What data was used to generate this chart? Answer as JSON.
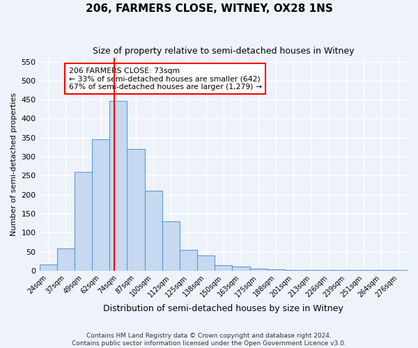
{
  "title": "206, FARMERS CLOSE, WITNEY, OX28 1NS",
  "subtitle": "Size of property relative to semi-detached houses in Witney",
  "xlabel": "Distribution of semi-detached houses by size in Witney",
  "ylabel": "Number of semi-detached properties",
  "categories": [
    "24sqm",
    "37sqm",
    "49sqm",
    "62sqm",
    "74sqm",
    "87sqm",
    "100sqm",
    "112sqm",
    "125sqm",
    "138sqm",
    "150sqm",
    "163sqm",
    "175sqm",
    "188sqm",
    "201sqm",
    "213sqm",
    "226sqm",
    "239sqm",
    "251sqm",
    "264sqm",
    "276sqm"
  ],
  "bar_heights": [
    17,
    58,
    260,
    345,
    447,
    320,
    210,
    130,
    55,
    40,
    15,
    10,
    6,
    3,
    2,
    2,
    1,
    1,
    1,
    1,
    2
  ],
  "bar_color": "#c6d9f0",
  "bar_edge_color": "#5b9bd5",
  "vline_x": 73,
  "vline_color": "red",
  "annotation_text": "206 FARMERS CLOSE: 73sqm\n← 33% of semi-detached houses are smaller (642)\n67% of semi-detached houses are larger (1,279) →",
  "annotation_box_color": "white",
  "annotation_box_edge": "red",
  "ylim": [
    0,
    560
  ],
  "yticks": [
    0,
    50,
    100,
    150,
    200,
    250,
    300,
    350,
    400,
    450,
    500,
    550
  ],
  "footer": "Contains HM Land Registry data © Crown copyright and database right 2024.\nContains public sector information licensed under the Open Government Licence v3.0.",
  "background_color": "#eef2fa",
  "grid_color": "#ffffff"
}
